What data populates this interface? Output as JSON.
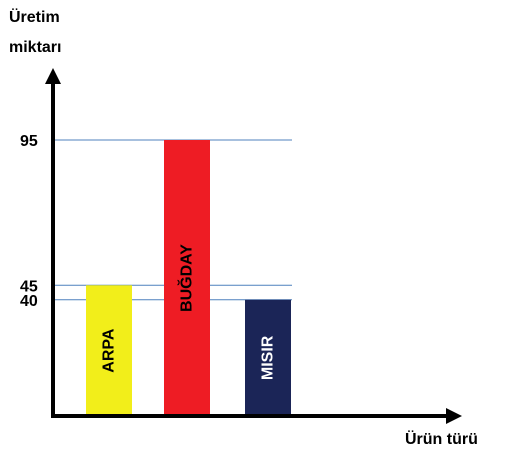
{
  "chart_data": {
    "type": "bar",
    "ylabel_line1": "Üretim",
    "ylabel_line2": "miktarı",
    "xlabel": "Ürün türü",
    "categories": [
      "ARPA",
      "BUĞDAY",
      "MISIR"
    ],
    "values": [
      45,
      95,
      40
    ],
    "colors": [
      "#f2ee1a",
      "#ee1c24",
      "#1b2557"
    ],
    "label_colors": [
      "#000000",
      "#000000",
      "#ffffff"
    ],
    "y_ticks": [
      95,
      45,
      40
    ],
    "ylim": [
      0,
      95
    ],
    "reference_line_color": "#4f81bd",
    "grid": false
  }
}
